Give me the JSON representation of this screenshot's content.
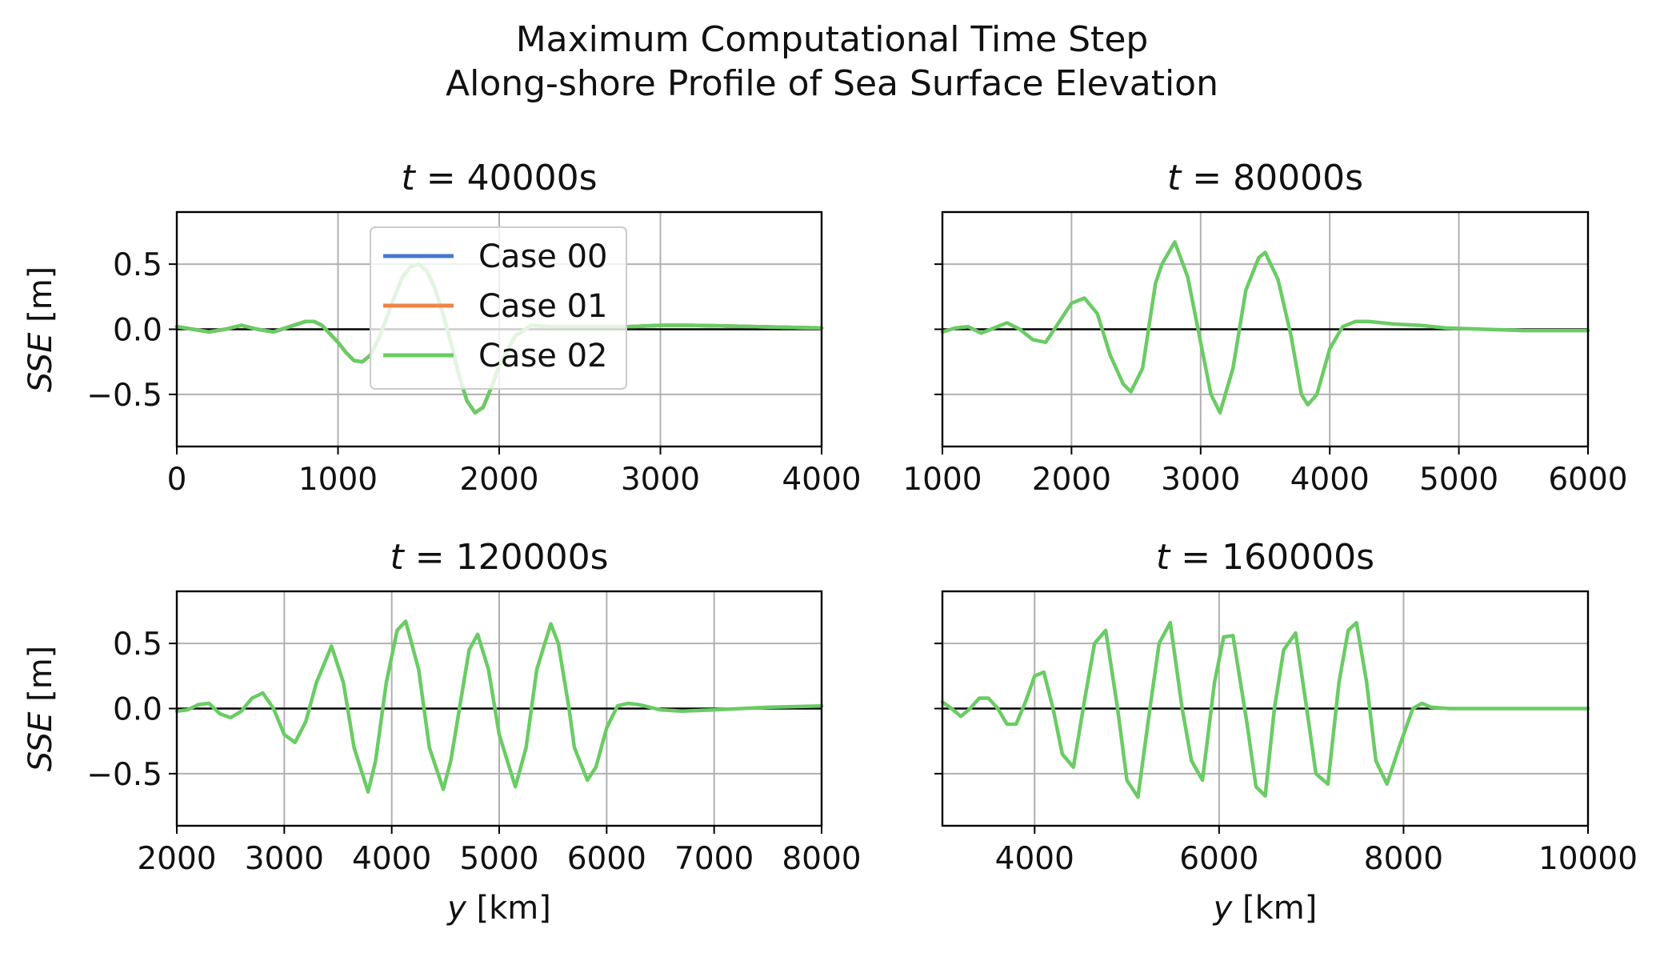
{
  "figure": {
    "title_line1": "Maximum Computational Time Step",
    "title_line2": "Along-shore Profile of Sea Surface Elevation"
  },
  "chart_data": [
    {
      "type": "line",
      "title": "t = 40000s",
      "title_var": "t",
      "title_rest": " = 40000s",
      "xlabel": "",
      "ylabel": "SSE [m]",
      "ylabel_var": "SSE",
      "ylabel_unit": " [m]",
      "xlim": [
        0,
        4000
      ],
      "ylim": [
        -0.9,
        0.9
      ],
      "xticks": [
        0,
        1000,
        2000,
        3000,
        4000
      ],
      "yticks": [
        -0.5,
        0.0,
        0.5
      ],
      "ytick_labels": [
        "−0.5",
        "0.0",
        "0.5"
      ],
      "grid": true,
      "legend": "upper-center",
      "series": [
        {
          "name": "Case 00",
          "color": "#4878d0",
          "x": [
            0,
            100,
            200,
            300,
            400,
            500,
            600,
            700,
            800,
            850,
            900,
            1000,
            1050,
            1100,
            1150,
            1200,
            1250,
            1300,
            1350,
            1400,
            1450,
            1500,
            1550,
            1600,
            1650,
            1700,
            1750,
            1800,
            1850,
            1900,
            1950,
            2000,
            2100,
            2200,
            2300,
            2400,
            2600,
            2800,
            3000,
            3200,
            3400,
            3600,
            3800,
            4000
          ],
          "y": [
            0.02,
            0.0,
            -0.02,
            0.0,
            0.03,
            0.0,
            -0.02,
            0.02,
            0.06,
            0.06,
            0.03,
            -0.1,
            -0.18,
            -0.24,
            -0.25,
            -0.2,
            -0.08,
            0.08,
            0.25,
            0.4,
            0.48,
            0.5,
            0.45,
            0.32,
            0.12,
            -0.1,
            -0.35,
            -0.55,
            -0.64,
            -0.6,
            -0.45,
            -0.28,
            -0.05,
            0.03,
            0.02,
            0.02,
            0.02,
            0.02,
            0.03,
            0.03,
            0.025,
            0.02,
            0.015,
            0.01
          ]
        },
        {
          "name": "Case 01",
          "color": "#ee854a",
          "x": [
            0,
            100,
            200,
            300,
            400,
            500,
            600,
            700,
            800,
            850,
            900,
            1000,
            1050,
            1100,
            1150,
            1200,
            1250,
            1300,
            1350,
            1400,
            1450,
            1500,
            1550,
            1600,
            1650,
            1700,
            1750,
            1800,
            1850,
            1900,
            1950,
            2000,
            2100,
            2200,
            2300,
            2400,
            2600,
            2800,
            3000,
            3200,
            3400,
            3600,
            3800,
            4000
          ],
          "y": [
            0.02,
            0.0,
            -0.02,
            0.0,
            0.03,
            0.0,
            -0.02,
            0.02,
            0.06,
            0.06,
            0.03,
            -0.1,
            -0.18,
            -0.24,
            -0.25,
            -0.2,
            -0.08,
            0.08,
            0.25,
            0.4,
            0.48,
            0.5,
            0.45,
            0.32,
            0.12,
            -0.1,
            -0.35,
            -0.55,
            -0.64,
            -0.6,
            -0.45,
            -0.28,
            -0.05,
            0.03,
            0.02,
            0.02,
            0.02,
            0.02,
            0.03,
            0.03,
            0.025,
            0.02,
            0.015,
            0.01
          ]
        },
        {
          "name": "Case 02",
          "color": "#6acc64",
          "x": [
            0,
            100,
            200,
            300,
            400,
            500,
            600,
            700,
            800,
            850,
            900,
            1000,
            1050,
            1100,
            1150,
            1200,
            1250,
            1300,
            1350,
            1400,
            1450,
            1500,
            1550,
            1600,
            1650,
            1700,
            1750,
            1800,
            1850,
            1900,
            1950,
            2000,
            2100,
            2200,
            2300,
            2400,
            2600,
            2800,
            3000,
            3200,
            3400,
            3600,
            3800,
            4000
          ],
          "y": [
            0.02,
            0.0,
            -0.02,
            0.0,
            0.03,
            0.0,
            -0.02,
            0.02,
            0.06,
            0.06,
            0.03,
            -0.1,
            -0.18,
            -0.24,
            -0.25,
            -0.2,
            -0.08,
            0.08,
            0.25,
            0.4,
            0.48,
            0.5,
            0.45,
            0.32,
            0.12,
            -0.1,
            -0.35,
            -0.55,
            -0.64,
            -0.6,
            -0.45,
            -0.28,
            -0.05,
            0.03,
            0.02,
            0.02,
            0.02,
            0.02,
            0.03,
            0.03,
            0.025,
            0.02,
            0.015,
            0.01
          ]
        }
      ]
    },
    {
      "type": "line",
      "title": "t = 80000s",
      "title_var": "t",
      "title_rest": " = 80000s",
      "xlabel": "",
      "ylabel": "",
      "xlim": [
        1000,
        6000
      ],
      "ylim": [
        -0.9,
        0.9
      ],
      "xticks": [
        1000,
        2000,
        3000,
        4000,
        5000,
        6000
      ],
      "yticks": [
        -0.5,
        0.0,
        0.5
      ],
      "ytick_labels": [
        "",
        "",
        ""
      ],
      "grid": true,
      "series": [
        {
          "name": "Case 02",
          "color": "#6acc64",
          "x": [
            1000,
            1100,
            1200,
            1300,
            1400,
            1500,
            1600,
            1700,
            1800,
            1900,
            2000,
            2100,
            2200,
            2300,
            2400,
            2460,
            2550,
            2650,
            2700,
            2800,
            2900,
            3000,
            3080,
            3150,
            3250,
            3350,
            3450,
            3500,
            3600,
            3700,
            3780,
            3830,
            3900,
            4000,
            4100,
            4200,
            4300,
            4500,
            4700,
            4900,
            5200,
            5500,
            6000
          ],
          "y": [
            -0.02,
            0.01,
            0.02,
            -0.03,
            0.01,
            0.05,
            0.0,
            -0.08,
            -0.1,
            0.05,
            0.2,
            0.24,
            0.12,
            -0.2,
            -0.42,
            -0.48,
            -0.3,
            0.35,
            0.5,
            0.67,
            0.4,
            -0.1,
            -0.5,
            -0.64,
            -0.3,
            0.3,
            0.55,
            0.59,
            0.38,
            -0.05,
            -0.5,
            -0.58,
            -0.5,
            -0.15,
            0.02,
            0.06,
            0.06,
            0.04,
            0.03,
            0.01,
            0.0,
            -0.01,
            -0.01
          ]
        }
      ]
    },
    {
      "type": "line",
      "title": "t = 120000s",
      "title_var": "t",
      "title_rest": " = 120000s",
      "xlabel": "y [km]",
      "xlabel_var": "y",
      "xlabel_unit": " [km]",
      "ylabel": "SSE [m]",
      "ylabel_var": "SSE",
      "ylabel_unit": " [m]",
      "xlim": [
        2000,
        8000
      ],
      "ylim": [
        -0.9,
        0.9
      ],
      "xticks": [
        2000,
        3000,
        4000,
        5000,
        6000,
        7000,
        8000
      ],
      "yticks": [
        -0.5,
        0.0,
        0.5
      ],
      "ytick_labels": [
        "−0.5",
        "0.0",
        "0.5"
      ],
      "grid": true,
      "series": [
        {
          "name": "Case 02",
          "color": "#6acc64",
          "x": [
            2000,
            2100,
            2200,
            2300,
            2400,
            2500,
            2600,
            2700,
            2800,
            2900,
            3000,
            3100,
            3200,
            3300,
            3440,
            3550,
            3650,
            3780,
            3850,
            3950,
            4050,
            4130,
            4250,
            4350,
            4480,
            4550,
            4650,
            4720,
            4800,
            4900,
            5000,
            5150,
            5250,
            5350,
            5480,
            5550,
            5650,
            5700,
            5820,
            5900,
            6000,
            6100,
            6200,
            6300,
            6500,
            6700,
            7000,
            7500,
            8000
          ],
          "y": [
            -0.02,
            -0.01,
            0.03,
            0.04,
            -0.04,
            -0.07,
            -0.02,
            0.08,
            0.12,
            0.0,
            -0.2,
            -0.26,
            -0.1,
            0.2,
            0.48,
            0.2,
            -0.3,
            -0.64,
            -0.4,
            0.2,
            0.6,
            0.67,
            0.3,
            -0.3,
            -0.62,
            -0.4,
            0.1,
            0.45,
            0.57,
            0.3,
            -0.2,
            -0.6,
            -0.3,
            0.3,
            0.65,
            0.5,
            0.0,
            -0.3,
            -0.55,
            -0.45,
            -0.15,
            0.02,
            0.04,
            0.03,
            -0.01,
            -0.02,
            -0.01,
            0.01,
            0.02
          ]
        }
      ]
    },
    {
      "type": "line",
      "title": "t = 160000s",
      "title_var": "t",
      "title_rest": " = 160000s",
      "xlabel": "y [km]",
      "xlabel_var": "y",
      "xlabel_unit": " [km]",
      "ylabel": "",
      "xlim": [
        3000,
        10000
      ],
      "ylim": [
        -0.9,
        0.9
      ],
      "xticks": [
        4000,
        6000,
        8000,
        10000
      ],
      "yticks": [
        -0.5,
        0.0,
        0.5
      ],
      "ytick_labels": [
        "",
        "",
        ""
      ],
      "grid": true,
      "series": [
        {
          "name": "Case 02",
          "color": "#6acc64",
          "x": [
            3000,
            3100,
            3200,
            3300,
            3400,
            3500,
            3600,
            3700,
            3800,
            3900,
            4000,
            4100,
            4200,
            4300,
            4420,
            4550,
            4650,
            4770,
            4900,
            5000,
            5120,
            5250,
            5350,
            5470,
            5600,
            5700,
            5820,
            5950,
            6050,
            6150,
            6300,
            6400,
            6500,
            6600,
            6700,
            6830,
            6950,
            7050,
            7180,
            7300,
            7400,
            7490,
            7600,
            7700,
            7820,
            7950,
            8100,
            8200,
            8300,
            8500,
            9000,
            10000
          ],
          "y": [
            0.05,
            0.0,
            -0.06,
            0.0,
            0.08,
            0.08,
            0.0,
            -0.12,
            -0.12,
            0.05,
            0.25,
            0.28,
            0.0,
            -0.35,
            -0.45,
            0.1,
            0.5,
            0.6,
            0.0,
            -0.55,
            -0.68,
            0.0,
            0.5,
            0.66,
            0.0,
            -0.4,
            -0.55,
            0.2,
            0.55,
            0.56,
            -0.1,
            -0.6,
            -0.67,
            0.0,
            0.45,
            0.58,
            0.0,
            -0.5,
            -0.58,
            0.2,
            0.6,
            0.66,
            0.2,
            -0.4,
            -0.58,
            -0.3,
            0.0,
            0.04,
            0.01,
            0.0,
            0.0,
            0.0
          ]
        }
      ]
    }
  ]
}
